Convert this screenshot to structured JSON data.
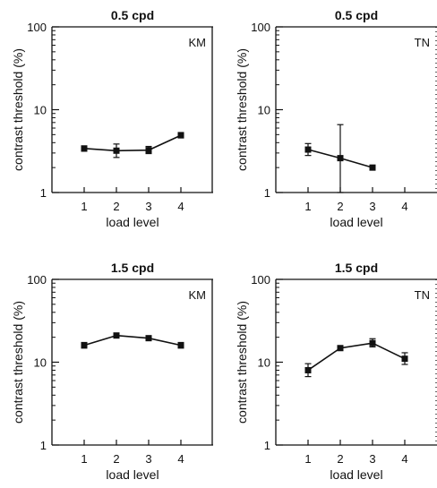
{
  "chart_data": [
    {
      "type": "line",
      "title": "0.5 cpd",
      "subject": "KM",
      "xlabel": "load level",
      "ylabel": "contrast threshold (%)",
      "yscale": "log",
      "ylim": [
        1,
        100
      ],
      "xlim": [
        0,
        5
      ],
      "x": [
        1,
        2,
        3,
        4
      ],
      "xticks": [
        "1",
        "2",
        "3",
        "4"
      ],
      "yticks": [
        "1",
        "10",
        "100"
      ],
      "values": [
        3.4,
        3.2,
        3.25,
        4.9
      ],
      "error_low": [
        3.15,
        2.65,
        2.95,
        4.6
      ],
      "error_high": [
        3.65,
        3.85,
        3.6,
        5.3
      ]
    },
    {
      "type": "line",
      "title": "0.5 cpd",
      "subject": "TN",
      "xlabel": "load level",
      "ylabel": "contrast threshold (%)",
      "yscale": "log",
      "ylim": [
        1,
        100
      ],
      "xlim": [
        0,
        5
      ],
      "x": [
        1,
        2,
        3
      ],
      "xticks": [
        "1",
        "2",
        "3",
        "4"
      ],
      "yticks": [
        "1",
        "10",
        "100"
      ],
      "values": [
        3.3,
        2.6,
        2.0
      ],
      "error_low": [
        2.8,
        1.0,
        1.9
      ],
      "error_high": [
        3.9,
        6.6,
        2.1
      ]
    },
    {
      "type": "line",
      "title": "1.5 cpd",
      "subject": "KM",
      "xlabel": "load level",
      "ylabel": "contrast threshold (%)",
      "yscale": "log",
      "ylim": [
        1,
        100
      ],
      "xlim": [
        0,
        5
      ],
      "x": [
        1,
        2,
        3,
        4
      ],
      "xticks": [
        "1",
        "2",
        "3",
        "4"
      ],
      "yticks": [
        "1",
        "10",
        "100"
      ],
      "values": [
        16,
        21,
        19.5,
        16
      ],
      "error_low": [
        14.8,
        19.8,
        18.4,
        14.8
      ],
      "error_high": [
        17.3,
        22.3,
        20.7,
        17.3
      ]
    },
    {
      "type": "line",
      "title": "1.5 cpd",
      "subject": "TN",
      "xlabel": "load level",
      "ylabel": "contrast threshold (%)",
      "yscale": "log",
      "ylim": [
        1,
        100
      ],
      "xlim": [
        0,
        5
      ],
      "x": [
        1,
        2,
        3,
        4
      ],
      "xticks": [
        "1",
        "2",
        "3",
        "4"
      ],
      "yticks": [
        "1",
        "10",
        "100"
      ],
      "values": [
        8,
        14.8,
        17,
        11
      ],
      "error_low": [
        6.7,
        14.0,
        15.3,
        9.4
      ],
      "error_high": [
        9.6,
        15.6,
        19.2,
        13.0
      ]
    }
  ]
}
